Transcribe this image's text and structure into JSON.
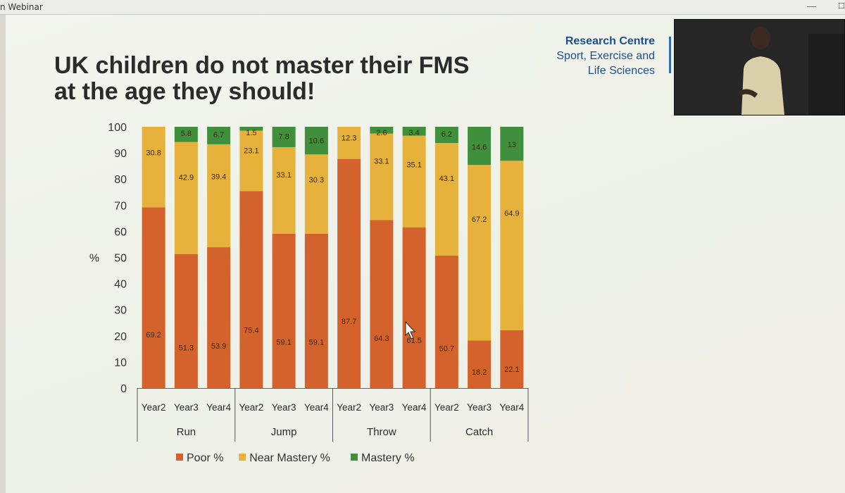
{
  "window": {
    "title": "n Webinar"
  },
  "slide": {
    "title": "UK children do not master their FMS\nat the age they should!",
    "org": {
      "line1": "Research Centre",
      "line2": "Sport, Exercise and",
      "line3": "Life Sciences"
    }
  },
  "colors": {
    "poor": "#d4622c",
    "near_mastery": "#e7b23c",
    "mastery": "#3f8f3c"
  },
  "chart_data": {
    "type": "bar",
    "stacked": true,
    "title": "",
    "xlabel": "",
    "ylabel": "%",
    "ylim": [
      0,
      100
    ],
    "yticks": [
      0,
      10,
      20,
      30,
      40,
      50,
      60,
      70,
      80,
      90,
      100
    ],
    "grid": false,
    "legend_position": "bottom",
    "groups": [
      "Run",
      "Jump",
      "Throw",
      "Catch"
    ],
    "categories": [
      "Year2",
      "Year3",
      "Year4",
      "Year2",
      "Year3",
      "Year4",
      "Year2",
      "Year3",
      "Year4",
      "Year2",
      "Year3",
      "Year4"
    ],
    "series": [
      {
        "name": "Poor %",
        "values": [
          69.2,
          51.3,
          53.9,
          75.4,
          59.1,
          59.1,
          87.7,
          64.3,
          61.5,
          50.7,
          18.2,
          22.1
        ]
      },
      {
        "name": "Near Mastery %",
        "values": [
          30.8,
          42.9,
          39.4,
          23.1,
          33.1,
          30.3,
          12.3,
          33.1,
          35.1,
          43.1,
          67.2,
          64.9
        ]
      },
      {
        "name": "Mastery %",
        "values": [
          null,
          5.8,
          6.7,
          1.5,
          7.8,
          10.6,
          null,
          2.6,
          3.4,
          6.2,
          14.6,
          13
        ]
      }
    ]
  }
}
